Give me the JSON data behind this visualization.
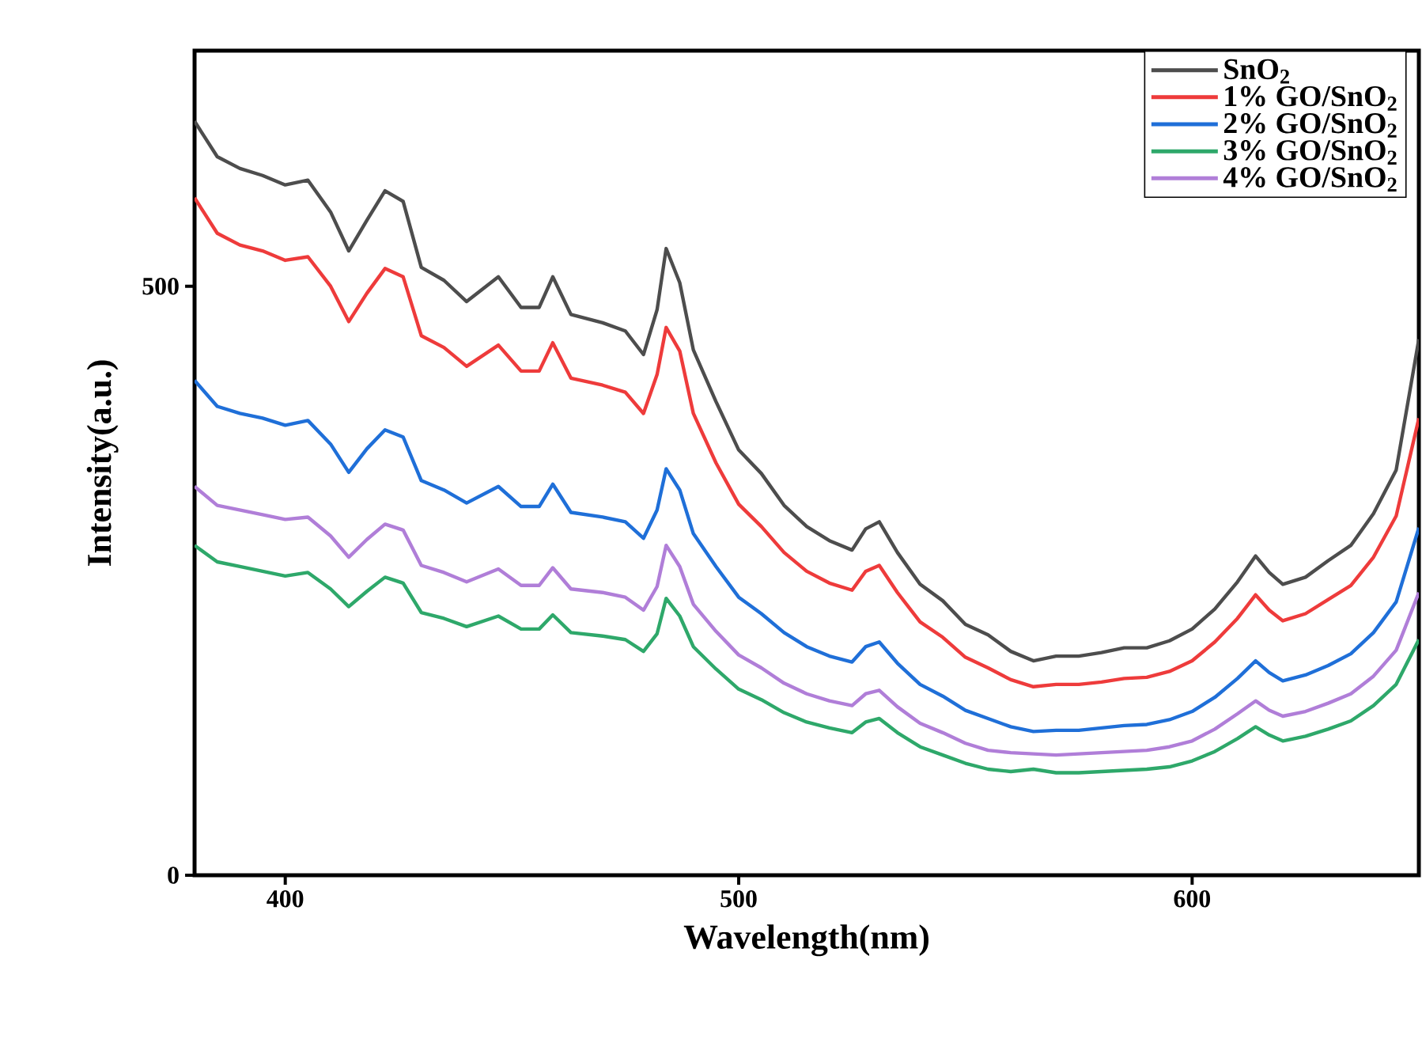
{
  "chart_data": {
    "type": "line",
    "xlabel": "Wavelength(nm)",
    "ylabel": "Intensity(a.u.)",
    "x": [
      380,
      385,
      390,
      395,
      400,
      405,
      410,
      414,
      418,
      422,
      426,
      430,
      435,
      440,
      447,
      452,
      456,
      459,
      463,
      470,
      475,
      479,
      482,
      484,
      487,
      490,
      495,
      500,
      505,
      510,
      515,
      520,
      525,
      528,
      531,
      535,
      540,
      545,
      550,
      555,
      560,
      565,
      570,
      575,
      580,
      585,
      590,
      595,
      600,
      605,
      610,
      614,
      617,
      620,
      625,
      630,
      635,
      640,
      645,
      650
    ],
    "series": [
      {
        "name": "SnO$_{2}$",
        "color": "#4d4d4d",
        "values": [
          640,
          610,
          600,
          594,
          586,
          590,
          563,
          530,
          556,
          581,
          572,
          516,
          505,
          487,
          508,
          482,
          482,
          508,
          476,
          469,
          462,
          442,
          480,
          532,
          503,
          446,
          402,
          361,
          341,
          314,
          296,
          284,
          276,
          294,
          300,
          274,
          247,
          233,
          213,
          204,
          190,
          182,
          186,
          186,
          189,
          193,
          193,
          199,
          209,
          226,
          249,
          271,
          257,
          247,
          253,
          267,
          280,
          307,
          344,
          455
        ]
      },
      {
        "name": "1% GO/SnO$_{2}$",
        "color": "#ee3b3b",
        "values": [
          575,
          545,
          535,
          530,
          522,
          525,
          500,
          470,
          494,
          515,
          508,
          458,
          448,
          432,
          450,
          428,
          428,
          452,
          422,
          416,
          410,
          392,
          425,
          465,
          445,
          392,
          350,
          315,
          296,
          274,
          258,
          248,
          242,
          258,
          263,
          240,
          215,
          202,
          185,
          176,
          166,
          160,
          162,
          162,
          164,
          167,
          168,
          173,
          182,
          198,
          218,
          238,
          225,
          216,
          222,
          234,
          246,
          270,
          305,
          388
        ]
      },
      {
        "name": "2% GO/SnO$_{2}$",
        "color": "#1f6fd8",
        "values": [
          420,
          398,
          392,
          388,
          382,
          386,
          366,
          342,
          362,
          378,
          372,
          335,
          327,
          316,
          330,
          313,
          313,
          332,
          308,
          304,
          300,
          286,
          310,
          345,
          327,
          290,
          262,
          236,
          222,
          206,
          194,
          186,
          181,
          194,
          198,
          180,
          162,
          152,
          140,
          133,
          126,
          122,
          123,
          123,
          125,
          127,
          128,
          132,
          139,
          151,
          167,
          182,
          172,
          165,
          170,
          178,
          188,
          206,
          232,
          295
        ]
      },
      {
        "name": "3% GO/SnO$_{2}$",
        "color": "#2ea86a",
        "values": [
          280,
          266,
          262,
          258,
          254,
          257,
          243,
          228,
          241,
          253,
          248,
          223,
          218,
          211,
          220,
          209,
          209,
          221,
          206,
          203,
          200,
          190,
          205,
          235,
          220,
          194,
          175,
          158,
          149,
          138,
          130,
          125,
          121,
          130,
          133,
          121,
          109,
          102,
          95,
          90,
          88,
          90,
          87,
          87,
          88,
          89,
          90,
          92,
          97,
          105,
          116,
          126,
          119,
          114,
          118,
          124,
          131,
          144,
          162,
          200
        ]
      },
      {
        "name": "4% GO/SnO$_{2}$",
        "color": "#b07ed8",
        "values": [
          330,
          314,
          310,
          306,
          302,
          304,
          288,
          270,
          285,
          298,
          293,
          263,
          257,
          249,
          260,
          246,
          246,
          261,
          243,
          240,
          236,
          225,
          245,
          280,
          262,
          230,
          207,
          187,
          176,
          163,
          154,
          148,
          144,
          154,
          157,
          143,
          129,
          121,
          112,
          106,
          104,
          103,
          102,
          103,
          104,
          105,
          106,
          109,
          114,
          124,
          137,
          148,
          140,
          135,
          139,
          146,
          154,
          169,
          191,
          240
        ]
      }
    ],
    "xlim": [
      380,
      650
    ],
    "ylim": [
      0,
      700
    ],
    "xticks": [
      400,
      500,
      600
    ],
    "yticks": [
      0,
      500
    ],
    "grid": false,
    "legend": "top right",
    "marker": "none",
    "line_style": "solid"
  }
}
